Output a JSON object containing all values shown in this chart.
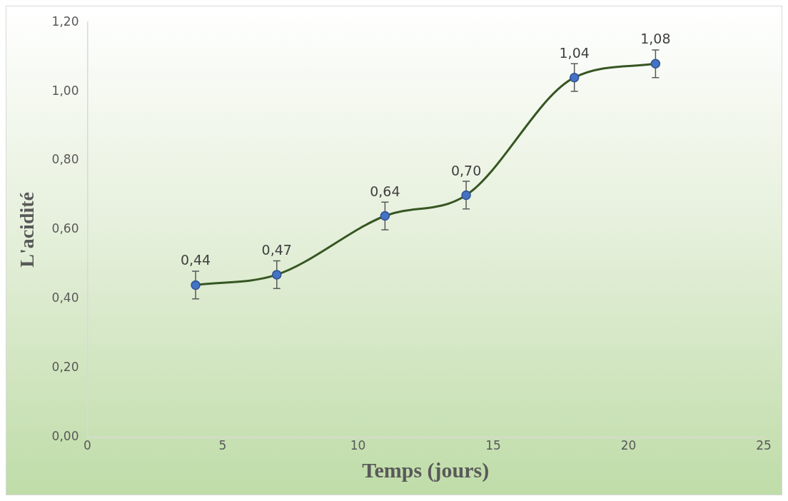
{
  "chart_data": {
    "type": "line",
    "xlabel": "Temps (jours)",
    "ylabel": "L'acidité",
    "x": [
      4,
      7,
      11,
      14,
      18,
      21
    ],
    "series": [
      {
        "color": "#375623",
        "values": [
          0.44,
          0.47,
          0.64,
          0.7,
          1.04,
          1.08
        ],
        "errors": [
          0.04,
          0.04,
          0.04,
          0.04,
          0.04,
          0.04
        ],
        "value_labels": [
          "0,44",
          "0,47",
          "0,64",
          "0,70",
          "1,04",
          "1,08"
        ]
      }
    ],
    "xlim": [
      0,
      25
    ],
    "xticks": [
      0,
      5,
      10,
      15,
      20,
      25
    ],
    "ylim": [
      0,
      1.2
    ],
    "yticks": [
      {
        "value": 0,
        "label": "0,00"
      },
      {
        "value": 0.2,
        "label": "0,20"
      },
      {
        "value": 0.4,
        "label": "0,40"
      },
      {
        "value": 0.6,
        "label": "0,60"
      },
      {
        "value": 0.8,
        "label": "0,80"
      },
      {
        "value": 1.0,
        "label": "1,00"
      },
      {
        "value": 1.2,
        "label": "1,20"
      }
    ],
    "grid": false,
    "legend": false,
    "marker": "circle",
    "line_style": "solid"
  }
}
